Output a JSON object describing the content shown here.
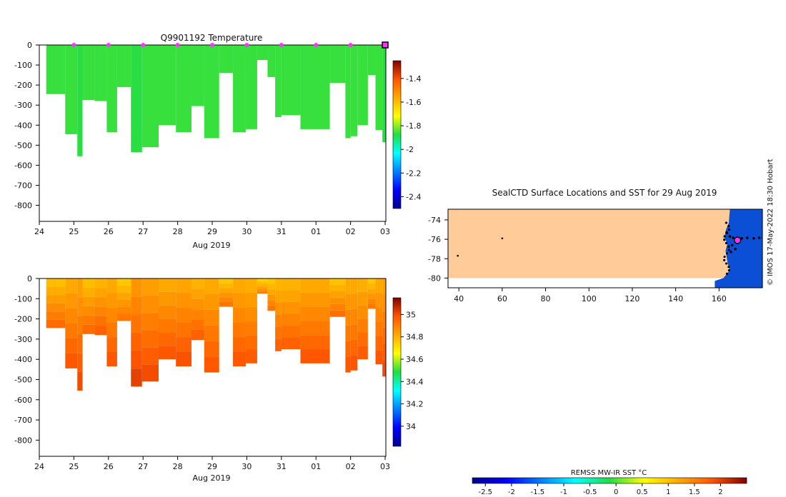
{
  "chart_data": [
    {
      "type": "heatmap",
      "title": "Q9901192  Temperature",
      "xlabel": "Aug 2019",
      "ylabel": "",
      "x_tick_labels": [
        "24",
        "25",
        "26",
        "27",
        "28",
        "29",
        "30",
        "31",
        "01",
        "02",
        "03"
      ],
      "y_tick_labels": [
        "0",
        "-100",
        "-200",
        "-300",
        "-400",
        "-500",
        "-600",
        "-700",
        "-800"
      ],
      "y_ticks": [
        0,
        -100,
        -200,
        -300,
        -400,
        -500,
        -600,
        -700,
        -800
      ],
      "ylim": [
        -880,
        0
      ],
      "xlim_days": [
        0,
        10.02
      ],
      "colorbar_ticks": [
        "-1.4",
        "-1.6",
        "-1.8",
        "-2",
        "-2.2",
        "-2.4"
      ],
      "colorbar_values": [
        -1.4,
        -1.6,
        -1.8,
        -2.0,
        -2.2,
        -2.4
      ],
      "colorbar_range": [
        -2.5,
        -1.25
      ],
      "profile_markers_days": [
        1,
        2,
        3,
        4,
        5,
        6,
        7,
        8,
        9
      ],
      "latest_marker_day": 10,
      "profiles": [
        {
          "start": 0.2,
          "end": 0.75,
          "depth": -245,
          "value": -1.86
        },
        {
          "start": 0.75,
          "end": 1.1,
          "depth": -445,
          "value": -1.86
        },
        {
          "start": 1.1,
          "end": 1.25,
          "depth": -555,
          "value": -1.87
        },
        {
          "start": 1.25,
          "end": 1.6,
          "depth": -275,
          "value": -1.86
        },
        {
          "start": 1.6,
          "end": 1.95,
          "depth": -280,
          "value": -1.86
        },
        {
          "start": 1.95,
          "end": 2.25,
          "depth": -435,
          "value": -1.86
        },
        {
          "start": 2.25,
          "end": 2.65,
          "depth": -210,
          "value": -1.86
        },
        {
          "start": 2.65,
          "end": 2.97,
          "depth": -535,
          "value": -1.87
        },
        {
          "start": 2.97,
          "end": 3.45,
          "depth": -510,
          "value": -1.86
        },
        {
          "start": 3.45,
          "end": 3.95,
          "depth": -400,
          "value": -1.86
        },
        {
          "start": 3.95,
          "end": 4.4,
          "depth": -435,
          "value": -1.86
        },
        {
          "start": 4.4,
          "end": 4.77,
          "depth": -305,
          "value": -1.86
        },
        {
          "start": 4.77,
          "end": 5.2,
          "depth": -465,
          "value": -1.86
        },
        {
          "start": 5.2,
          "end": 5.6,
          "depth": -140,
          "value": -1.86
        },
        {
          "start": 5.6,
          "end": 5.97,
          "depth": -435,
          "value": -1.86
        },
        {
          "start": 5.97,
          "end": 6.3,
          "depth": -420,
          "value": -1.86
        },
        {
          "start": 6.3,
          "end": 6.6,
          "depth": -75,
          "value": -1.86
        },
        {
          "start": 6.6,
          "end": 6.82,
          "depth": -160,
          "value": -1.86
        },
        {
          "start": 6.82,
          "end": 7.0,
          "depth": -360,
          "value": -1.86
        },
        {
          "start": 7.0,
          "end": 7.55,
          "depth": -350,
          "value": -1.86
        },
        {
          "start": 7.55,
          "end": 8.4,
          "depth": -420,
          "value": -1.86
        },
        {
          "start": 8.4,
          "end": 8.85,
          "depth": -190,
          "value": -1.86
        },
        {
          "start": 8.85,
          "end": 9.0,
          "depth": -465,
          "value": -1.86
        },
        {
          "start": 9.0,
          "end": 9.2,
          "depth": -455,
          "value": -1.86
        },
        {
          "start": 9.2,
          "end": 9.5,
          "depth": -400,
          "value": -1.86
        },
        {
          "start": 9.5,
          "end": 9.72,
          "depth": -150,
          "value": -1.86
        },
        {
          "start": 9.72,
          "end": 9.92,
          "depth": -425,
          "value": -1.86
        },
        {
          "start": 9.92,
          "end": 10.02,
          "depth": -485,
          "value": -1.87
        }
      ]
    },
    {
      "type": "heatmap",
      "title": "",
      "xlabel": "Aug 2019",
      "ylabel": "",
      "x_tick_labels": [
        "24",
        "25",
        "26",
        "27",
        "28",
        "29",
        "30",
        "31",
        "01",
        "02",
        "03"
      ],
      "y_tick_labels": [
        "0",
        "-100",
        "-200",
        "-300",
        "-400",
        "-500",
        "-600",
        "-700",
        "-800"
      ],
      "y_ticks": [
        0,
        -100,
        -200,
        -300,
        -400,
        -500,
        -600,
        -700,
        -800
      ],
      "ylim": [
        -880,
        0
      ],
      "xlim_days": [
        0,
        10.02
      ],
      "colorbar_ticks": [
        "35",
        "34.8",
        "34.6",
        "34.4",
        "34.2",
        "34"
      ],
      "colorbar_values": [
        35.0,
        34.8,
        34.6,
        34.4,
        34.2,
        34.0
      ],
      "colorbar_range": [
        33.82,
        35.15
      ],
      "profiles": [
        {
          "start": 0.2,
          "end": 0.75,
          "depth": -245,
          "value": 34.86
        },
        {
          "start": 0.75,
          "end": 1.1,
          "depth": -445,
          "value": 34.9
        },
        {
          "start": 1.1,
          "end": 1.25,
          "depth": -555,
          "value": 34.92
        },
        {
          "start": 1.25,
          "end": 1.6,
          "depth": -275,
          "value": 34.86
        },
        {
          "start": 1.6,
          "end": 1.95,
          "depth": -280,
          "value": 34.88
        },
        {
          "start": 1.95,
          "end": 2.25,
          "depth": -435,
          "value": 34.9
        },
        {
          "start": 2.25,
          "end": 2.65,
          "depth": -210,
          "value": 34.84
        },
        {
          "start": 2.65,
          "end": 2.97,
          "depth": -535,
          "value": 34.94
        },
        {
          "start": 2.97,
          "end": 3.45,
          "depth": -510,
          "value": 34.92
        },
        {
          "start": 3.45,
          "end": 3.95,
          "depth": -400,
          "value": 34.9
        },
        {
          "start": 3.95,
          "end": 4.4,
          "depth": -435,
          "value": 34.91
        },
        {
          "start": 4.4,
          "end": 4.77,
          "depth": -305,
          "value": 34.88
        },
        {
          "start": 4.77,
          "end": 5.2,
          "depth": -465,
          "value": 34.9
        },
        {
          "start": 5.2,
          "end": 5.6,
          "depth": -140,
          "value": 34.84
        },
        {
          "start": 5.6,
          "end": 5.97,
          "depth": -435,
          "value": 34.9
        },
        {
          "start": 5.97,
          "end": 6.3,
          "depth": -420,
          "value": 34.89
        },
        {
          "start": 6.3,
          "end": 6.6,
          "depth": -75,
          "value": 34.82
        },
        {
          "start": 6.6,
          "end": 6.82,
          "depth": -160,
          "value": 34.84
        },
        {
          "start": 6.82,
          "end": 7.0,
          "depth": -360,
          "value": 34.88
        },
        {
          "start": 7.0,
          "end": 7.55,
          "depth": -350,
          "value": 34.88
        },
        {
          "start": 7.55,
          "end": 8.4,
          "depth": -420,
          "value": 34.9
        },
        {
          "start": 8.4,
          "end": 8.85,
          "depth": -190,
          "value": 34.85
        },
        {
          "start": 8.85,
          "end": 9.0,
          "depth": -465,
          "value": 34.9
        },
        {
          "start": 9.0,
          "end": 9.2,
          "depth": -455,
          "value": 34.9
        },
        {
          "start": 9.2,
          "end": 9.5,
          "depth": -400,
          "value": 34.89
        },
        {
          "start": 9.5,
          "end": 9.72,
          "depth": -150,
          "value": 34.84
        },
        {
          "start": 9.72,
          "end": 9.92,
          "depth": -425,
          "value": 34.9
        },
        {
          "start": 9.92,
          "end": 10.02,
          "depth": -485,
          "value": 34.92
        }
      ]
    },
    {
      "type": "scatter",
      "title": "SealCTD Surface Locations and SST for 29 Aug 2019",
      "xlabel": "",
      "ylabel": "",
      "x_tick_labels": [
        "40",
        "60",
        "80",
        "100",
        "120",
        "140",
        "160"
      ],
      "x_ticks": [
        40,
        60,
        80,
        100,
        120,
        140,
        160
      ],
      "y_tick_labels": [
        "-74",
        "-76",
        "-78",
        "-80"
      ],
      "y_ticks": [
        -74,
        -76,
        -78,
        -80
      ],
      "xlim": [
        35,
        180
      ],
      "ylim": [
        -81,
        -72.9
      ],
      "sst_fill_value": -1.8,
      "land_boundary_lon": 160,
      "land_boundary_lat": -80,
      "surface_locations": [
        {
          "lon": 60,
          "lat": -75.9
        },
        {
          "lon": 39.5,
          "lat": -77.7
        }
      ],
      "track_points": [
        {
          "lon": 163.5,
          "lat": -75.3
        },
        {
          "lon": 165.0,
          "lat": -75.7
        },
        {
          "lon": 166.5,
          "lat": -75.85
        },
        {
          "lon": 168.0,
          "lat": -75.95
        },
        {
          "lon": 170.5,
          "lat": -75.9
        },
        {
          "lon": 173.0,
          "lat": -75.85
        },
        {
          "lon": 176.0,
          "lat": -75.9
        },
        {
          "lon": 178.5,
          "lat": -75.85
        },
        {
          "lon": 166.0,
          "lat": -76.6
        },
        {
          "lon": 167.5,
          "lat": -77.0
        },
        {
          "lon": 165.5,
          "lat": -77.3
        }
      ],
      "current_location": {
        "lon": 168.5,
        "lat": -76.1
      },
      "colorbar_label": "REMSS MW-IR SST °C",
      "colorbar_ticks": [
        "-2.5",
        "-2",
        "-1.5",
        "-1",
        "-0.5",
        "0",
        "0.5",
        "1",
        "1.5",
        "2"
      ],
      "colorbar_values": [
        -2.5,
        -2.0,
        -1.5,
        -1.0,
        -0.5,
        0.0,
        0.5,
        1.0,
        1.5,
        2.0
      ],
      "colorbar_range": [
        -2.75,
        2.5
      ]
    }
  ],
  "watermark": "© IMOS 17-May-2022 18:30 Hobart",
  "colors": {
    "land": "#0a4fd6",
    "sst": "#ffcc99",
    "marker": "#ff33ff",
    "track": "#000000"
  }
}
